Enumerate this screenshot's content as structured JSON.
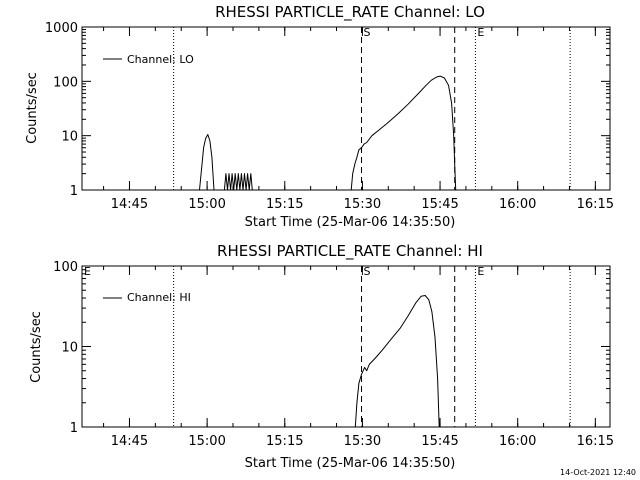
{
  "colors": {
    "background": "#ffffff",
    "ink": "#000000"
  },
  "footer": {
    "timestamp": "14-Oct-2021 12:40"
  },
  "chart_data": [
    {
      "type": "line",
      "title": "RHESSI PARTICLE_RATE Channel: LO",
      "xlabel": "Start Time (25-Mar-06 14:35:50)",
      "ylabel": "Counts/sec",
      "yscale": "log",
      "xunit": "minutes since 14:35:50",
      "xlim": [
        0,
        102
      ],
      "ylim": [
        1,
        1000
      ],
      "y_ticks": [
        {
          "value": 1,
          "label": "1"
        },
        {
          "value": 10,
          "label": "10"
        },
        {
          "value": 100,
          "label": "100"
        },
        {
          "value": 1000,
          "label": "1000"
        }
      ],
      "x_ticks": [
        {
          "value": 9.17,
          "label": "14:45"
        },
        {
          "value": 24.17,
          "label": "15:00"
        },
        {
          "value": 39.17,
          "label": "15:15"
        },
        {
          "value": 54.17,
          "label": "15:30"
        },
        {
          "value": 69.17,
          "label": "15:45"
        },
        {
          "value": 84.17,
          "label": "16:00"
        },
        {
          "value": 99.17,
          "label": "16:15"
        }
      ],
      "legend": {
        "location": "top-left",
        "entries": [
          "Channel: LO"
        ]
      },
      "vlines": [
        {
          "x": 17.7,
          "style": "dotted",
          "label": ""
        },
        {
          "x": 54.0,
          "style": "dashed",
          "label": "S"
        },
        {
          "x": 72.0,
          "style": "dashed",
          "label": ""
        },
        {
          "x": 76.0,
          "style": "dotted",
          "label": "E"
        },
        {
          "x": 94.3,
          "style": "dotted",
          "label": ""
        }
      ],
      "series": [
        {
          "name": "Channel: LO",
          "segments": [
            [
              [
                22.7,
                1
              ],
              [
                23.1,
                2.5
              ],
              [
                23.5,
                6
              ],
              [
                23.9,
                9
              ],
              [
                24.3,
                10.5
              ],
              [
                24.7,
                8
              ],
              [
                25.1,
                4
              ],
              [
                25.5,
                1
              ]
            ],
            [
              [
                27.5,
                1
              ],
              [
                27.8,
                2
              ],
              [
                28.1,
                1
              ],
              [
                28.4,
                2
              ],
              [
                28.7,
                1
              ],
              [
                29.0,
                2
              ],
              [
                29.3,
                1
              ],
              [
                29.6,
                2
              ],
              [
                29.9,
                1
              ],
              [
                30.2,
                2
              ],
              [
                30.5,
                1
              ],
              [
                30.8,
                2
              ],
              [
                31.1,
                1
              ],
              [
                31.4,
                2
              ],
              [
                31.7,
                1
              ],
              [
                32.0,
                2
              ],
              [
                32.3,
                1
              ],
              [
                32.6,
                2
              ],
              [
                32.9,
                1
              ]
            ],
            [
              [
                52.0,
                1
              ],
              [
                52.3,
                2
              ],
              [
                52.7,
                3
              ],
              [
                53.1,
                4
              ],
              [
                53.5,
                5.5
              ],
              [
                54.0,
                6
              ],
              [
                54.5,
                7
              ],
              [
                55.0,
                7.5
              ],
              [
                56.0,
                10
              ],
              [
                57.5,
                13
              ],
              [
                59.0,
                17
              ],
              [
                61.0,
                25
              ],
              [
                63.0,
                38
              ],
              [
                65.0,
                60
              ],
              [
                66.5,
                85
              ],
              [
                67.5,
                105
              ],
              [
                68.5,
                120
              ],
              [
                69.2,
                125
              ],
              [
                70.0,
                115
              ],
              [
                70.8,
                85
              ],
              [
                71.4,
                40
              ],
              [
                71.8,
                10
              ],
              [
                72.0,
                3
              ],
              [
                72.2,
                1
              ]
            ]
          ]
        }
      ]
    },
    {
      "type": "line",
      "title": "RHESSI PARTICLE_RATE Channel: HI",
      "xlabel": "Start Time (25-Mar-06 14:35:50)",
      "ylabel": "Counts/sec",
      "yscale": "log",
      "xunit": "minutes since 14:35:50",
      "xlim": [
        0,
        102
      ],
      "ylim": [
        1,
        100
      ],
      "y_ticks": [
        {
          "value": 1,
          "label": "1"
        },
        {
          "value": 10,
          "label": "10"
        },
        {
          "value": 100,
          "label": "100"
        }
      ],
      "x_ticks": [
        {
          "value": 9.17,
          "label": "14:45"
        },
        {
          "value": 24.17,
          "label": "15:00"
        },
        {
          "value": 39.17,
          "label": "15:15"
        },
        {
          "value": 54.17,
          "label": "15:30"
        },
        {
          "value": 69.17,
          "label": "15:45"
        },
        {
          "value": 84.17,
          "label": "16:00"
        },
        {
          "value": 99.17,
          "label": "16:15"
        }
      ],
      "legend": {
        "location": "top-left",
        "entries": [
          "Channel: HI"
        ]
      },
      "vlines": [
        {
          "x": 0.0,
          "style": "none",
          "label": "E"
        },
        {
          "x": 17.7,
          "style": "dotted",
          "label": ""
        },
        {
          "x": 54.0,
          "style": "dashed",
          "label": "S"
        },
        {
          "x": 72.0,
          "style": "dashed",
          "label": ""
        },
        {
          "x": 76.0,
          "style": "dotted",
          "label": "E"
        },
        {
          "x": 94.3,
          "style": "dotted",
          "label": ""
        }
      ],
      "series": [
        {
          "name": "Channel: HI",
          "segments": [
            [
              [
                52.8,
                1
              ],
              [
                53.1,
                2
              ],
              [
                53.5,
                3.5
              ],
              [
                54.0,
                4.5
              ],
              [
                54.6,
                5.5
              ],
              [
                55.0,
                5
              ],
              [
                55.5,
                6
              ],
              [
                56.5,
                7
              ],
              [
                58.0,
                9
              ],
              [
                60.0,
                13
              ],
              [
                61.5,
                17
              ],
              [
                63.0,
                24
              ],
              [
                64.5,
                35
              ],
              [
                65.5,
                42
              ],
              [
                66.3,
                43
              ],
              [
                67.0,
                38
              ],
              [
                67.6,
                27
              ],
              [
                68.2,
                13
              ],
              [
                68.7,
                4
              ],
              [
                69.0,
                1
              ]
            ]
          ]
        }
      ]
    }
  ]
}
